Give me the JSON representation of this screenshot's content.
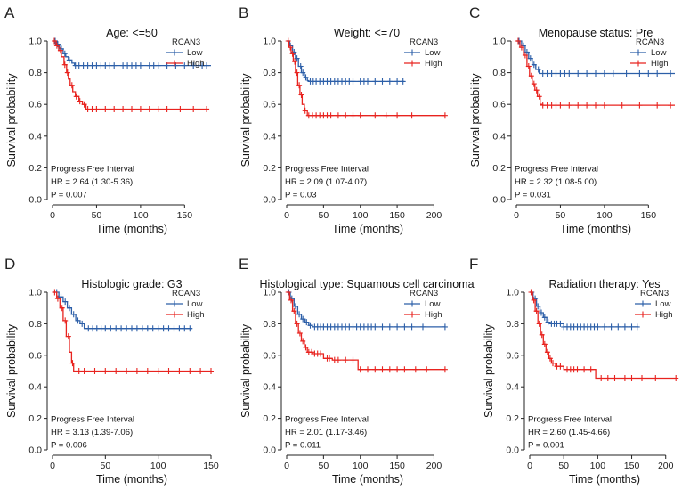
{
  "colors": {
    "low": "#2c5fa8",
    "high": "#e8231f",
    "axis": "#222222"
  },
  "chart_data": [
    {
      "type": "line",
      "letter": "A",
      "title": "Age: <=50",
      "xlabel": "Time (months)",
      "ylabel": "Survival probability",
      "xlim": [
        0,
        180
      ],
      "ylim": [
        0,
        1.0
      ],
      "xticks": [
        0,
        50,
        100,
        150
      ],
      "yticks": [
        0.0,
        0.2,
        0.4,
        0.6,
        0.8,
        1.0
      ],
      "legend_title": "RCAN3",
      "series": [
        {
          "name": "Low",
          "steps": [
            [
              0,
              1.0
            ],
            [
              5,
              0.98
            ],
            [
              8,
              0.95
            ],
            [
              12,
              0.92
            ],
            [
              15,
              0.9
            ],
            [
              18,
              0.88
            ],
            [
              22,
              0.86
            ],
            [
              25,
              0.845
            ],
            [
              180,
              0.845
            ]
          ],
          "censor": [
            3,
            6,
            10,
            14,
            19,
            26,
            30,
            35,
            40,
            45,
            50,
            55,
            60,
            65,
            70,
            80,
            85,
            90,
            95,
            100,
            110,
            115,
            120,
            130,
            140,
            150,
            160,
            170,
            175
          ]
        },
        {
          "name": "High",
          "steps": [
            [
              0,
              1.0
            ],
            [
              4,
              0.97
            ],
            [
              7,
              0.94
            ],
            [
              10,
              0.9
            ],
            [
              13,
              0.85
            ],
            [
              16,
              0.8
            ],
            [
              18,
              0.76
            ],
            [
              20,
              0.72
            ],
            [
              23,
              0.68
            ],
            [
              26,
              0.65
            ],
            [
              30,
              0.62
            ],
            [
              34,
              0.6
            ],
            [
              38,
              0.57
            ],
            [
              178,
              0.57
            ]
          ],
          "censor": [
            2,
            5,
            9,
            14,
            17,
            22,
            27,
            31,
            36,
            40,
            45,
            50,
            60,
            70,
            80,
            90,
            100,
            110,
            120,
            130,
            145,
            160,
            175
          ]
        }
      ],
      "annotation": [
        "Progress Free Interval",
        "HR = 2.64 (1.30-5.36)",
        "P = 0.007"
      ]
    },
    {
      "type": "line",
      "letter": "B",
      "title": "Weight: <=70",
      "xlabel": "Time (months)",
      "ylabel": "Survival probability",
      "xlim": [
        0,
        220
      ],
      "ylim": [
        0,
        1.0
      ],
      "xticks": [
        0,
        50,
        100,
        150,
        200
      ],
      "yticks": [
        0.0,
        0.2,
        0.4,
        0.6,
        0.8,
        1.0
      ],
      "legend_title": "RCAN3",
      "series": [
        {
          "name": "Low",
          "steps": [
            [
              0,
              1.0
            ],
            [
              4,
              0.97
            ],
            [
              8,
              0.93
            ],
            [
              12,
              0.89
            ],
            [
              16,
              0.84
            ],
            [
              20,
              0.8
            ],
            [
              24,
              0.77
            ],
            [
              28,
              0.75
            ],
            [
              30,
              0.745
            ],
            [
              160,
              0.745
            ]
          ],
          "censor": [
            5,
            10,
            14,
            19,
            22,
            26,
            32,
            36,
            40,
            45,
            50,
            55,
            60,
            65,
            70,
            75,
            80,
            85,
            90,
            100,
            105,
            110,
            120,
            130,
            140,
            150,
            158
          ]
        },
        {
          "name": "High",
          "steps": [
            [
              0,
              1.0
            ],
            [
              3,
              0.96
            ],
            [
              6,
              0.92
            ],
            [
              9,
              0.87
            ],
            [
              12,
              0.8
            ],
            [
              15,
              0.72
            ],
            [
              18,
              0.66
            ],
            [
              21,
              0.6
            ],
            [
              24,
              0.56
            ],
            [
              28,
              0.53
            ],
            [
              215,
              0.53
            ]
          ],
          "censor": [
            2,
            5,
            8,
            11,
            14,
            17,
            20,
            25,
            30,
            35,
            40,
            45,
            50,
            55,
            60,
            70,
            80,
            90,
            100,
            120,
            135,
            150,
            170,
            215
          ]
        }
      ],
      "annotation": [
        "Progress Free Interval",
        "HR = 2.09 (1.07-4.07)",
        "P = 0.03"
      ]
    },
    {
      "type": "line",
      "letter": "C",
      "title": "Menopause status: Pre",
      "xlabel": "Time (months)",
      "ylabel": "Survival probability",
      "xlim": [
        0,
        180
      ],
      "ylim": [
        0,
        1.0
      ],
      "xticks": [
        0,
        50,
        100,
        150
      ],
      "yticks": [
        0.0,
        0.2,
        0.4,
        0.6,
        0.8,
        1.0
      ],
      "legend_title": "RCAN3",
      "series": [
        {
          "name": "Low",
          "steps": [
            [
              0,
              1.0
            ],
            [
              6,
              0.97
            ],
            [
              10,
              0.93
            ],
            [
              14,
              0.89
            ],
            [
              18,
              0.85
            ],
            [
              22,
              0.82
            ],
            [
              26,
              0.795
            ],
            [
              180,
              0.795
            ]
          ],
          "censor": [
            3,
            8,
            12,
            16,
            20,
            25,
            30,
            35,
            40,
            45,
            50,
            55,
            60,
            70,
            80,
            90,
            100,
            110,
            125,
            140,
            150,
            160,
            175
          ]
        },
        {
          "name": "High",
          "steps": [
            [
              0,
              1.0
            ],
            [
              4,
              0.96
            ],
            [
              8,
              0.91
            ],
            [
              12,
              0.84
            ],
            [
              15,
              0.78
            ],
            [
              18,
              0.73
            ],
            [
              21,
              0.69
            ],
            [
              24,
              0.65
            ],
            [
              27,
              0.6
            ],
            [
              30,
              0.595
            ],
            [
              180,
              0.595
            ]
          ],
          "censor": [
            2,
            6,
            10,
            14,
            17,
            20,
            23,
            26,
            30,
            35,
            40,
            45,
            50,
            60,
            70,
            80,
            90,
            100,
            120,
            140,
            160,
            175
          ]
        }
      ],
      "annotation": [
        "Progress Free Interval",
        "HR = 2.32 (1.08-5.00)",
        "P = 0.031"
      ]
    },
    {
      "type": "line",
      "letter": "D",
      "title": "Histologic grade: G3",
      "xlabel": "Time (months)",
      "ylabel": "Survival probability",
      "xlim": [
        0,
        150
      ],
      "ylim": [
        0,
        1.0
      ],
      "xticks": [
        0,
        50,
        100,
        150
      ],
      "yticks": [
        0.0,
        0.2,
        0.4,
        0.6,
        0.8,
        1.0
      ],
      "legend_title": "RCAN3",
      "series": [
        {
          "name": "Low",
          "steps": [
            [
              0,
              1.0
            ],
            [
              6,
              0.97
            ],
            [
              10,
              0.94
            ],
            [
              14,
              0.9
            ],
            [
              18,
              0.86
            ],
            [
              22,
              0.82
            ],
            [
              26,
              0.8
            ],
            [
              30,
              0.77
            ],
            [
              132,
              0.77
            ]
          ],
          "censor": [
            4,
            8,
            12,
            16,
            20,
            24,
            28,
            34,
            38,
            42,
            46,
            50,
            55,
            60,
            65,
            70,
            75,
            80,
            85,
            90,
            95,
            100,
            105,
            110,
            115,
            120,
            125,
            130
          ]
        },
        {
          "name": "High",
          "steps": [
            [
              0,
              1.0
            ],
            [
              4,
              0.96
            ],
            [
              7,
              0.9
            ],
            [
              10,
              0.82
            ],
            [
              13,
              0.72
            ],
            [
              16,
              0.62
            ],
            [
              18,
              0.55
            ],
            [
              20,
              0.5
            ],
            [
              150,
              0.5
            ]
          ],
          "censor": [
            2,
            5,
            9,
            12,
            15,
            19,
            25,
            30,
            40,
            50,
            60,
            70,
            80,
            90,
            100,
            110,
            120,
            130,
            140,
            150
          ]
        }
      ],
      "annotation": [
        "Progress Free Interval",
        "HR = 3.13 (1.39-7.06)",
        "P = 0.006"
      ]
    },
    {
      "type": "line",
      "letter": "E",
      "title": "Histological type: Squamous cell carcinoma",
      "xlabel": "Time (months)",
      "ylabel": "Survival probability",
      "xlim": [
        0,
        220
      ],
      "ylim": [
        0,
        1.0
      ],
      "xticks": [
        0,
        50,
        100,
        150,
        200
      ],
      "yticks": [
        0.0,
        0.2,
        0.4,
        0.6,
        0.8,
        1.0
      ],
      "legend_title": "RCAN3",
      "series": [
        {
          "name": "Low",
          "steps": [
            [
              0,
              1.0
            ],
            [
              5,
              0.96
            ],
            [
              10,
              0.91
            ],
            [
              15,
              0.86
            ],
            [
              20,
              0.83
            ],
            [
              25,
              0.81
            ],
            [
              30,
              0.79
            ],
            [
              35,
              0.78
            ],
            [
              215,
              0.78
            ]
          ],
          "censor": [
            3,
            7,
            12,
            17,
            22,
            27,
            32,
            38,
            42,
            46,
            50,
            55,
            60,
            65,
            70,
            75,
            80,
            85,
            90,
            95,
            100,
            105,
            110,
            115,
            120,
            130,
            140,
            150,
            160,
            170,
            185,
            215
          ]
        },
        {
          "name": "High",
          "steps": [
            [
              0,
              1.0
            ],
            [
              4,
              0.95
            ],
            [
              8,
              0.88
            ],
            [
              12,
              0.8
            ],
            [
              16,
              0.74
            ],
            [
              20,
              0.69
            ],
            [
              24,
              0.65
            ],
            [
              28,
              0.62
            ],
            [
              35,
              0.61
            ],
            [
              50,
              0.58
            ],
            [
              62,
              0.57
            ],
            [
              97,
              0.51
            ],
            [
              215,
              0.51
            ]
          ],
          "censor": [
            2,
            6,
            10,
            14,
            18,
            22,
            26,
            30,
            34,
            38,
            42,
            46,
            55,
            58,
            65,
            70,
            80,
            90,
            100,
            110,
            120,
            130,
            140,
            150,
            160,
            175,
            190,
            215
          ]
        }
      ],
      "annotation": [
        "Progress Free Interval",
        "HR = 2.01 (1.17-3.46)",
        "P = 0.011"
      ]
    },
    {
      "type": "line",
      "letter": "F",
      "title": "Radiation therapy: Yes",
      "xlabel": "Time (months)",
      "ylabel": "Survival probability",
      "xlim": [
        0,
        220
      ],
      "ylim": [
        0,
        1.0
      ],
      "xticks": [
        0,
        50,
        100,
        150,
        200
      ],
      "yticks": [
        0.0,
        0.2,
        0.4,
        0.6,
        0.8,
        1.0
      ],
      "legend_title": "RCAN3",
      "series": [
        {
          "name": "Low",
          "steps": [
            [
              0,
              1.0
            ],
            [
              5,
              0.96
            ],
            [
              10,
              0.91
            ],
            [
              15,
              0.87
            ],
            [
              20,
              0.84
            ],
            [
              25,
              0.81
            ],
            [
              30,
              0.8
            ],
            [
              50,
              0.78
            ],
            [
              160,
              0.78
            ]
          ],
          "censor": [
            3,
            8,
            12,
            17,
            22,
            27,
            32,
            36,
            40,
            45,
            50,
            55,
            60,
            65,
            70,
            75,
            80,
            85,
            90,
            95,
            100,
            110,
            120,
            130,
            140,
            150,
            158
          ]
        },
        {
          "name": "High",
          "steps": [
            [
              0,
              1.0
            ],
            [
              4,
              0.95
            ],
            [
              8,
              0.88
            ],
            [
              12,
              0.8
            ],
            [
              16,
              0.73
            ],
            [
              20,
              0.67
            ],
            [
              24,
              0.62
            ],
            [
              28,
              0.58
            ],
            [
              32,
              0.55
            ],
            [
              38,
              0.53
            ],
            [
              50,
              0.51
            ],
            [
              97,
              0.455
            ],
            [
              215,
              0.455
            ]
          ],
          "censor": [
            2,
            6,
            10,
            14,
            18,
            22,
            26,
            30,
            34,
            40,
            45,
            55,
            60,
            65,
            70,
            80,
            90,
            105,
            115,
            125,
            140,
            150,
            165,
            185,
            215
          ]
        }
      ],
      "annotation": [
        "Progress Free Interval",
        "HR = 2.60 (1.45-4.66)",
        "P = 0.001"
      ]
    }
  ]
}
